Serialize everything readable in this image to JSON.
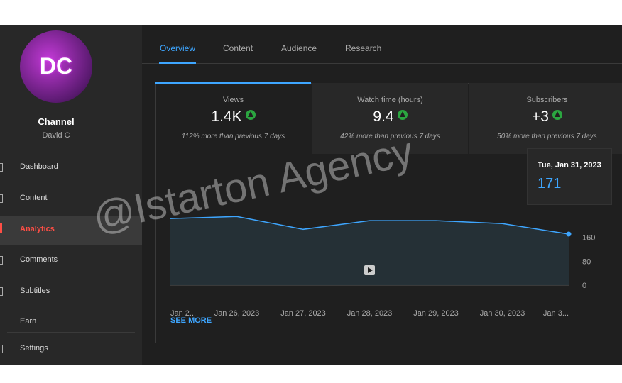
{
  "sidebar": {
    "avatar": "DC",
    "channel_title": "Channel",
    "channel_name": "David C",
    "nav": [
      "Dashboard",
      "Content",
      "Analytics",
      "Comments",
      "Subtitles",
      "Earn",
      "Settings"
    ],
    "active": "Analytics"
  },
  "tabs": [
    "Overview",
    "Content",
    "Audience",
    "Research"
  ],
  "active_tab": "Overview",
  "metrics": [
    {
      "label": "Views",
      "value": "1.4K",
      "note": "112% more than previous 7 days"
    },
    {
      "label": "Watch time (hours)",
      "value": "9.4",
      "note": "42% more than previous 7 days"
    },
    {
      "label": "Subscribers",
      "value": "+3",
      "note": "50% more than previous 7 days"
    }
  ],
  "chart_data": {
    "type": "line",
    "categories": [
      "Jan 2...",
      "Jan 26, 2023",
      "Jan 27, 2023",
      "Jan 28, 2023",
      "Jan 29, 2023",
      "Jan 30, 2023",
      "Jan 3..."
    ],
    "values": [
      223,
      230,
      187,
      216,
      216,
      206,
      171
    ],
    "color": "#3ea6ff",
    "ylim": [
      0,
      240
    ],
    "yticks": [
      0,
      80,
      160
    ]
  },
  "tooltip": {
    "date": "Tue, Jan 31, 2023"
  },
  "see_more": "SEE MORE",
  "watermark": "@Istarton Agency"
}
